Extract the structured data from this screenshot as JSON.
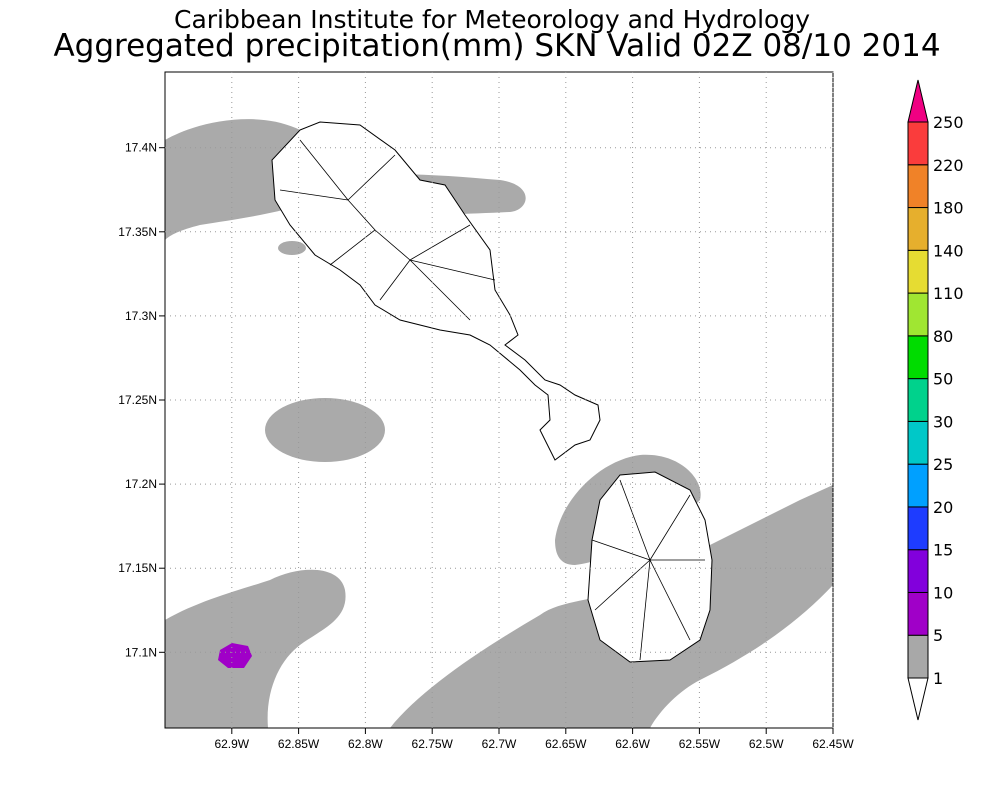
{
  "map": {
    "title": "Caribbean Institute for Meteorology and Hydrology",
    "subtitle": "Aggregated precipitation(mm) SKN Valid 02Z 08/10 2014",
    "xlim": [
      -62.95,
      -62.45
    ],
    "ylim": [
      17.055,
      17.445
    ],
    "xticks": [
      {
        "value": -62.9,
        "label": "62.9W"
      },
      {
        "value": -62.85,
        "label": "62.85W"
      },
      {
        "value": -62.8,
        "label": "62.8W"
      },
      {
        "value": -62.75,
        "label": "62.75W"
      },
      {
        "value": -62.7,
        "label": "62.7W"
      },
      {
        "value": -62.65,
        "label": "62.65W"
      },
      {
        "value": -62.6,
        "label": "62.6W"
      },
      {
        "value": -62.55,
        "label": "62.55W"
      },
      {
        "value": -62.5,
        "label": "62.5W"
      },
      {
        "value": -62.45,
        "label": "62.45W"
      }
    ],
    "yticks": [
      {
        "value": 17.1,
        "label": "17.1N"
      },
      {
        "value": 17.15,
        "label": "17.15N"
      },
      {
        "value": 17.2,
        "label": "17.2N"
      },
      {
        "value": 17.25,
        "label": "17.25N"
      },
      {
        "value": 17.3,
        "label": "17.3N"
      },
      {
        "value": 17.35,
        "label": "17.35N"
      },
      {
        "value": 17.4,
        "label": "17.4N"
      }
    ],
    "grid": true,
    "colorbar": {
      "levels": [
        1,
        5,
        10,
        15,
        20,
        25,
        30,
        50,
        80,
        110,
        140,
        180,
        220,
        250
      ],
      "colors": [
        "#ffffff",
        "#a8a8a8",
        "#a000c8",
        "#8200dc",
        "#1e3cff",
        "#00a0ff",
        "#00c8c8",
        "#00d28c",
        "#00dc00",
        "#a0e632",
        "#e6dc32",
        "#e6af2d",
        "#f08228",
        "#fa3c3c",
        "#f00082"
      ]
    }
  }
}
